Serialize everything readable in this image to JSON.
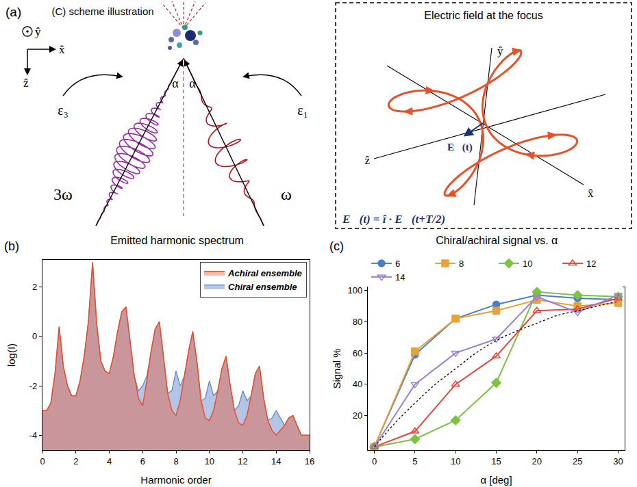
{
  "diagram": {
    "panel_label": "(a)",
    "title": "(C) scheme illustration",
    "frame_axes": {
      "y": "ŷ",
      "x": "x̂",
      "z": "ẑ"
    },
    "beams": [
      {
        "angle": "α",
        "polarization": "ε₃",
        "frequency": "3ω",
        "color": "#9c2ba8"
      },
      {
        "angle": "α",
        "polarization": "ε₁",
        "frequency": "ω",
        "color": "#b3121c"
      }
    ],
    "inset": {
      "title": "Electric field at the focus",
      "axes": {
        "x": "x̂",
        "y": "ŷ",
        "z": "ẑ"
      },
      "vector": "E⃗(t)",
      "equation": "E⃗(t) = î · E⃗(t+T/2)",
      "color": "#e8502a"
    }
  },
  "chart_data": [
    {
      "panel_label": "(b)",
      "type": "area",
      "title": "Emitted harmonic spectrum",
      "x_label": "Harmonic order",
      "y_label": "log(I)",
      "x": [
        0,
        0.25,
        0.5,
        0.75,
        1,
        1.25,
        1.5,
        1.75,
        2,
        2.25,
        2.5,
        2.75,
        3,
        3.25,
        3.5,
        3.75,
        4,
        4.25,
        4.5,
        4.75,
        5,
        5.25,
        5.5,
        5.75,
        6,
        6.25,
        6.5,
        6.75,
        7,
        7.25,
        7.5,
        7.75,
        8,
        8.25,
        8.5,
        8.75,
        9,
        9.25,
        9.5,
        9.75,
        10,
        10.25,
        10.5,
        10.75,
        11,
        11.25,
        11.5,
        11.75,
        12,
        12.25,
        12.5,
        12.75,
        13,
        13.25,
        13.5,
        13.75,
        14,
        14.25,
        14.5,
        14.75,
        15,
        15.25,
        15.5,
        15.75,
        16
      ],
      "series": [
        {
          "name": "Chiral ensemble",
          "color": "#5b7fcb",
          "values": [
            -3.0,
            -3.0,
            -2.7,
            -1.5,
            0.4,
            -1.2,
            -2.0,
            -2.4,
            -2.4,
            -1.8,
            -0.8,
            0.6,
            3.0,
            0.5,
            -1.0,
            -1.4,
            -1.5,
            -0.8,
            0.2,
            1.0,
            1.2,
            -0.2,
            -1.6,
            -2.2,
            -2.0,
            -1.6,
            -0.6,
            0.3,
            0.6,
            -0.8,
            -2.3,
            -2.2,
            -1.4,
            -2.0,
            -1.6,
            -0.6,
            0.2,
            -1.0,
            -2.6,
            -2.5,
            -1.8,
            -2.4,
            -2.2,
            -1.3,
            -0.8,
            -2.0,
            -3.0,
            -2.8,
            -2.2,
            -2.6,
            -2.4,
            -1.5,
            -1.2,
            -2.5,
            -3.4,
            -3.3,
            -3.0,
            -3.3,
            -3.6,
            -3.3,
            -3.2,
            -3.6,
            -4.0,
            -4.0,
            -4.0
          ]
        },
        {
          "name": "Achiral ensemble",
          "color": "#e8502a",
          "values": [
            -3.0,
            -3.0,
            -2.7,
            -1.5,
            0.4,
            -1.2,
            -2.0,
            -2.4,
            -2.4,
            -1.8,
            -0.8,
            0.6,
            3.0,
            0.5,
            -1.0,
            -1.4,
            -1.5,
            -0.8,
            0.2,
            1.0,
            1.2,
            -0.2,
            -1.6,
            -2.5,
            -2.8,
            -1.8,
            -0.6,
            0.3,
            0.6,
            -0.8,
            -2.3,
            -3.0,
            -3.2,
            -2.6,
            -1.6,
            -0.6,
            0.2,
            -1.0,
            -2.6,
            -3.3,
            -3.4,
            -3.0,
            -2.2,
            -1.3,
            -0.8,
            -2.0,
            -3.0,
            -3.5,
            -3.6,
            -3.2,
            -2.4,
            -1.5,
            -1.2,
            -2.5,
            -3.4,
            -3.8,
            -4.0,
            -3.8,
            -3.6,
            -3.3,
            -3.2,
            -3.6,
            -4.0,
            -4.0,
            -4.0
          ]
        }
      ],
      "xlim": [
        0,
        16
      ],
      "xticks": [
        0,
        2,
        4,
        6,
        8,
        10,
        12,
        14,
        16
      ],
      "ylim": [
        -4.6,
        3.1
      ],
      "yticks": [
        -4,
        -2,
        0,
        2
      ],
      "grid": false,
      "legend": "top-right"
    },
    {
      "panel_label": "(c)",
      "type": "line",
      "title": "Chiral/achiral signal vs. α",
      "x_label": "α [deg]",
      "y_label": "Signal %",
      "x": [
        0,
        5,
        10,
        15,
        20,
        25,
        30
      ],
      "series": [
        {
          "name": "6",
          "color": "#4a7ec8",
          "marker": "circle",
          "values": [
            0,
            59,
            82,
            91,
            97,
            95,
            94
          ]
        },
        {
          "name": "8",
          "color": "#e8a23a",
          "marker": "square",
          "values": [
            0,
            61,
            82,
            87,
            94,
            90,
            92
          ]
        },
        {
          "name": "10",
          "color": "#7dc242",
          "marker": "diamond",
          "values": [
            0,
            5,
            17,
            41,
            99,
            97,
            96
          ]
        },
        {
          "name": "12",
          "color": "#e8463a",
          "marker": "triangle-up-open",
          "values": [
            0,
            10,
            40,
            58,
            87,
            88,
            95
          ]
        },
        {
          "name": "14",
          "color": "#9b7fd4",
          "marker": "triangle-down-open",
          "values": [
            0,
            40,
            60,
            69,
            96,
            86,
            97
          ]
        },
        {
          "color": "#000000",
          "line_style": "dot",
          "x": [
            0,
            2.5,
            5,
            7.5,
            10,
            12.5,
            15,
            17.5,
            20,
            22.5,
            25,
            27.5,
            30
          ],
          "values": [
            0,
            15,
            28,
            40,
            50,
            60,
            68,
            74,
            79,
            84,
            87,
            90,
            93
          ]
        }
      ],
      "xlim": [
        -0.8,
        30.8
      ],
      "xticks": [
        0,
        5,
        10,
        15,
        20,
        25,
        30
      ],
      "ylim": [
        -2,
        102
      ],
      "yticks": [
        20,
        40,
        60,
        80,
        100
      ],
      "grid": false,
      "legend": "top"
    }
  ]
}
